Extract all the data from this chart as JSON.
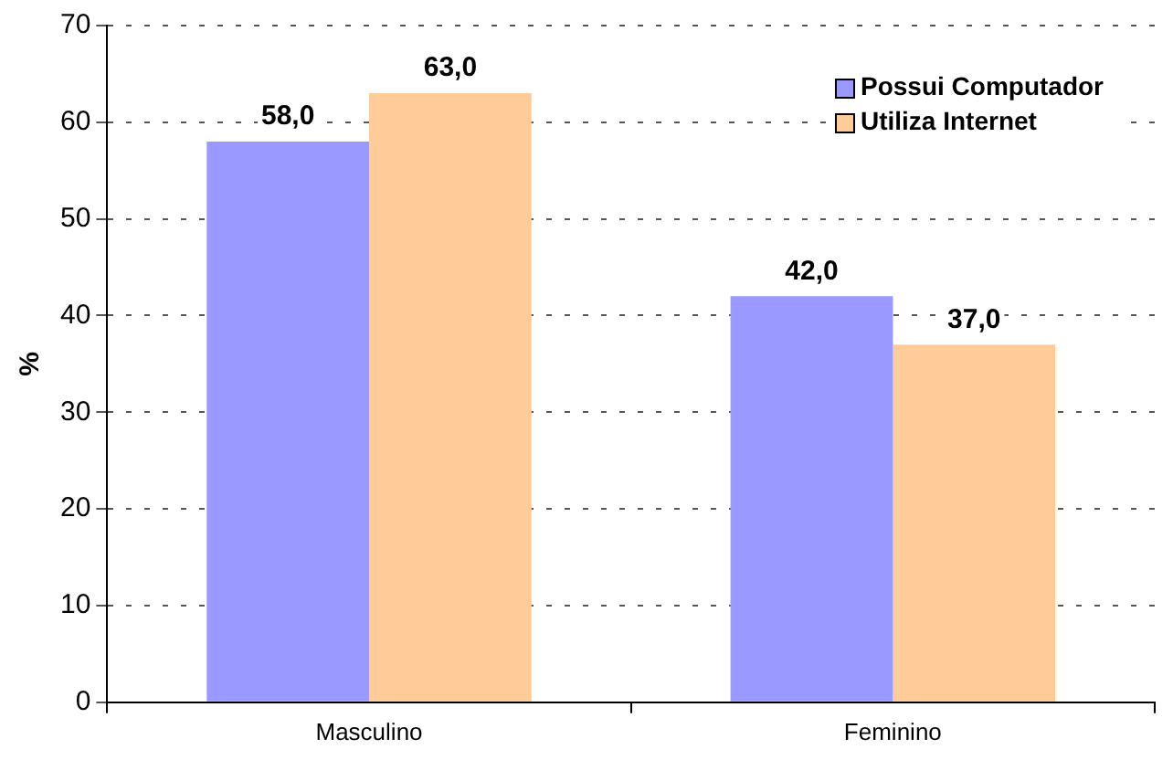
{
  "chart_data": {
    "type": "bar",
    "ylabel": "%",
    "categories": [
      "Masculino",
      "Feminino"
    ],
    "series": [
      {
        "name": "Possui Computador",
        "color": "#9999ff",
        "values": [
          58.0,
          42.0
        ],
        "value_labels": [
          "58,0",
          "42,0"
        ]
      },
      {
        "name": "Utiliza Internet",
        "color": "#ffcc99",
        "values": [
          63.0,
          37.0
        ],
        "value_labels": [
          "63,0",
          "37,0"
        ]
      }
    ],
    "ylim": [
      0,
      70
    ],
    "yticks": [
      0,
      10,
      20,
      30,
      40,
      50,
      60,
      70
    ],
    "grid": "y",
    "legend": "top right"
  }
}
